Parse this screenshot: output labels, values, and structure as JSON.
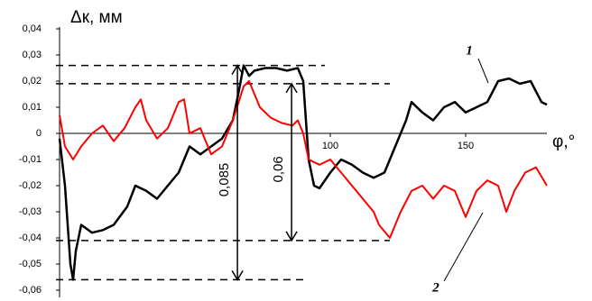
{
  "chart_data": {
    "type": "line",
    "y_label": "Δк, мм",
    "x_label": "φ,°",
    "xlim": [
      0,
      180
    ],
    "ylim": [
      -0.06,
      0.04
    ],
    "xticks": [
      100,
      150
    ],
    "yticks": [
      {
        "value": -0.06,
        "label": "-0,06"
      },
      {
        "value": -0.05,
        "label": "-0,05"
      },
      {
        "value": -0.04,
        "label": "-0,04"
      },
      {
        "value": -0.03,
        "label": "-0,03"
      },
      {
        "value": -0.02,
        "label": "-0,02"
      },
      {
        "value": -0.01,
        "label": "-0,01"
      },
      0,
      {
        "value": 0.01,
        "label": "0,01"
      },
      {
        "value": 0.02,
        "label": "0,02"
      },
      {
        "value": 0.03,
        "label": "0,03"
      },
      {
        "value": 0.04,
        "label": "0,04"
      }
    ],
    "series": [
      {
        "name": "1",
        "color": "#000000",
        "x": [
          0,
          2,
          4,
          5,
          6,
          8,
          12,
          16,
          20,
          25,
          28,
          32,
          36,
          40,
          44,
          48,
          52,
          56,
          60,
          64,
          66,
          68,
          70,
          72,
          76,
          80,
          84,
          88,
          90,
          92,
          94,
          96,
          100,
          104,
          108,
          112,
          116,
          120,
          124,
          128,
          130,
          134,
          138,
          142,
          146,
          150,
          154,
          158,
          162,
          166,
          170,
          174,
          178,
          180
        ],
        "values": [
          -0.002,
          -0.02,
          -0.05,
          -0.056,
          -0.045,
          -0.035,
          -0.038,
          -0.037,
          -0.035,
          -0.028,
          -0.02,
          -0.022,
          -0.025,
          -0.02,
          -0.015,
          -0.005,
          -0.008,
          -0.005,
          -0.002,
          0.005,
          0.015,
          0.026,
          0.022,
          0.024,
          0.025,
          0.025,
          0.024,
          0.025,
          0.02,
          -0.01,
          -0.02,
          -0.021,
          -0.015,
          -0.01,
          -0.012,
          -0.015,
          -0.017,
          -0.015,
          -0.005,
          0.005,
          0.012,
          0.008,
          0.005,
          0.01,
          0.012,
          0.008,
          0.01,
          0.012,
          0.02,
          0.021,
          0.019,
          0.02,
          0.012,
          0.011
        ]
      },
      {
        "name": "2",
        "color": "#ff0000",
        "x": [
          0,
          2,
          5,
          8,
          12,
          16,
          20,
          24,
          28,
          30,
          32,
          36,
          40,
          44,
          46,
          48,
          52,
          56,
          60,
          64,
          68,
          70,
          74,
          78,
          82,
          86,
          88,
          90,
          92,
          96,
          100,
          104,
          108,
          112,
          116,
          118,
          122,
          126,
          130,
          134,
          138,
          142,
          146,
          150,
          154,
          158,
          162,
          165,
          168,
          172,
          176,
          180
        ],
        "values": [
          0.007,
          -0.005,
          -0.01,
          -0.005,
          0,
          0.003,
          -0.003,
          0.002,
          0.01,
          0.013,
          0.005,
          -0.002,
          0.002,
          0.012,
          0.013,
          0,
          0.002,
          -0.008,
          -0.005,
          0.005,
          0.018,
          0.02,
          0.01,
          0.006,
          0.004,
          0.003,
          0.005,
          0,
          -0.01,
          -0.012,
          -0.01,
          -0.015,
          -0.02,
          -0.025,
          -0.03,
          -0.035,
          -0.04,
          -0.03,
          -0.022,
          -0.02,
          -0.025,
          -0.02,
          -0.022,
          -0.032,
          -0.022,
          -0.018,
          -0.02,
          -0.03,
          -0.022,
          -0.015,
          -0.013,
          -0.02
        ]
      }
    ],
    "reference_lines": [
      {
        "y": 0.026,
        "x_end": 98
      },
      {
        "y": 0.019,
        "x_end": 122
      },
      {
        "y": -0.041,
        "x_end": 122
      },
      {
        "y": -0.056,
        "x_end": 90
      }
    ],
    "annotations": [
      {
        "text": "0,085",
        "x": 65.7,
        "y1": 0.026,
        "y2": -0.056
      },
      {
        "text": "0,06",
        "x": 85.7,
        "y1": 0.019,
        "y2": -0.041
      }
    ]
  }
}
